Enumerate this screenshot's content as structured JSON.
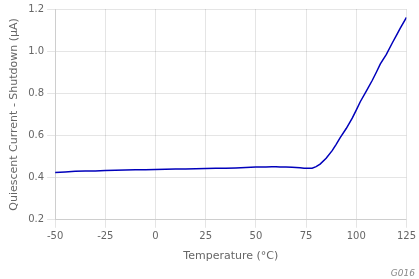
{
  "chart_data": {
    "type": "line",
    "xlabel": "Temperature (°C)",
    "ylabel": "Quiescent Current - Shutdown (μA)",
    "x": [
      -50,
      -45,
      -40,
      -35,
      -30,
      -25,
      -20,
      -15,
      -10,
      -5,
      0,
      5,
      10,
      15,
      20,
      25,
      30,
      35,
      40,
      45,
      50,
      55,
      58,
      60,
      62,
      65,
      68,
      70,
      72,
      74,
      76,
      78,
      80,
      82,
      85,
      88,
      90,
      92,
      95,
      98,
      100,
      102,
      105,
      108,
      110,
      112,
      115,
      118,
      120,
      122,
      125
    ],
    "values": [
      0.424,
      0.427,
      0.43,
      0.431,
      0.432,
      0.434,
      0.435,
      0.436,
      0.437,
      0.438,
      0.439,
      0.44,
      0.441,
      0.441,
      0.442,
      0.443,
      0.444,
      0.445,
      0.446,
      0.448,
      0.45,
      0.451,
      0.452,
      0.452,
      0.451,
      0.45,
      0.449,
      0.448,
      0.447,
      0.445,
      0.444,
      0.445,
      0.452,
      0.464,
      0.492,
      0.528,
      0.558,
      0.59,
      0.633,
      0.682,
      0.72,
      0.76,
      0.81,
      0.862,
      0.9,
      0.94,
      0.985,
      1.04,
      1.075,
      1.11,
      1.16
    ],
    "color": "#0000bb",
    "xlim": [
      -50,
      125
    ],
    "ylim": [
      0.2,
      1.2
    ],
    "xticks": [
      -50,
      -25,
      0,
      25,
      50,
      75,
      100,
      125
    ],
    "yticks": [
      0.2,
      0.4,
      0.6,
      0.8,
      {
        "value": 1.0,
        "label": "1.0"
      },
      1.2
    ],
    "grid": true,
    "annotations": [
      "G016"
    ]
  }
}
